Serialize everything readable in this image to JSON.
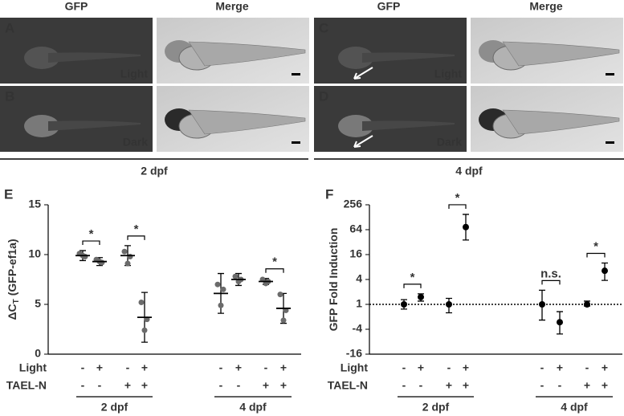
{
  "header": {
    "columns": [
      "GFP",
      "Merge",
      "GFP",
      "Merge"
    ]
  },
  "panels": [
    {
      "letter": "A",
      "condition": "Light"
    },
    {
      "letter": "B",
      "condition": "Dark"
    },
    {
      "letter": "C",
      "condition": "Light"
    },
    {
      "letter": "D",
      "condition": "Dark"
    }
  ],
  "age_labels": [
    "2 dpf",
    "4 dpf"
  ],
  "chart_data": [
    {
      "type": "dot-errorbar",
      "panel": "E",
      "ylabel": {
        "main": "ΔC",
        "sub": "T",
        "rest": "(GFP-ef1a)"
      },
      "ylim": [
        0,
        15
      ],
      "yticks": [
        0,
        5,
        10,
        15
      ],
      "values": [
        9.9,
        9.3,
        9.9,
        3.7,
        6.1,
        7.5,
        7.3,
        4.6
      ],
      "errors": [
        0.5,
        0.4,
        1.0,
        2.5,
        2.0,
        0.6,
        0.3,
        1.5
      ],
      "points": [
        [
          10.1,
          9.8,
          9.9
        ],
        [
          9.5,
          9.2,
          9.3
        ],
        [
          10.3,
          9.8,
          9.1
        ],
        [
          5.2,
          3.5,
          2.4
        ],
        [
          7.0,
          6.5,
          4.9
        ],
        [
          7.8,
          7.5,
          7.3
        ],
        [
          7.5,
          7.3,
          7.1
        ],
        [
          6.0,
          4.4,
          3.4
        ]
      ],
      "color": "#000000",
      "point_color": "#6b6b6b",
      "annotations": [
        "*",
        "*",
        "*"
      ],
      "conditions": [
        {
          "name": "Light",
          "signs": [
            "-",
            "+",
            "-",
            "+",
            "-",
            "+",
            "-",
            "+"
          ]
        },
        {
          "name": "TAEL-N",
          "signs": [
            "-",
            "-",
            "+",
            "+",
            "-",
            "-",
            "+",
            "+"
          ]
        }
      ],
      "groups": [
        "2 dpf",
        "4 dpf"
      ]
    },
    {
      "type": "dot-errorbar",
      "panel": "F",
      "ylabel": {
        "main": "GFP Fold Induction"
      },
      "yscale": "signed-log2",
      "ylim": [
        -16,
        256
      ],
      "yticks": [
        -16,
        -4,
        1,
        4,
        16,
        64,
        256
      ],
      "reference_line": 1,
      "values": [
        1,
        1.5,
        1,
        74,
        1,
        -2.7,
        1,
        6.5
      ],
      "error_low": [
        -1.3,
        1.2,
        -1.6,
        36,
        -2.4,
        -5.2,
        -1.1,
        3.8
      ],
      "error_high": [
        1.3,
        1.8,
        1.4,
        150,
        2.2,
        -1.5,
        1.2,
        10
      ],
      "color": "#000000",
      "annotations": [
        "*",
        "*",
        "n.s.",
        "*"
      ],
      "conditions": [
        {
          "name": "Light",
          "signs": [
            "-",
            "+",
            "-",
            "+",
            "-",
            "+",
            "-",
            "+"
          ]
        },
        {
          "name": "TAEL-N",
          "signs": [
            "-",
            "-",
            "+",
            "+",
            "-",
            "-",
            "+",
            "+"
          ]
        }
      ],
      "groups": [
        "2 dpf",
        "4 dpf"
      ]
    }
  ]
}
